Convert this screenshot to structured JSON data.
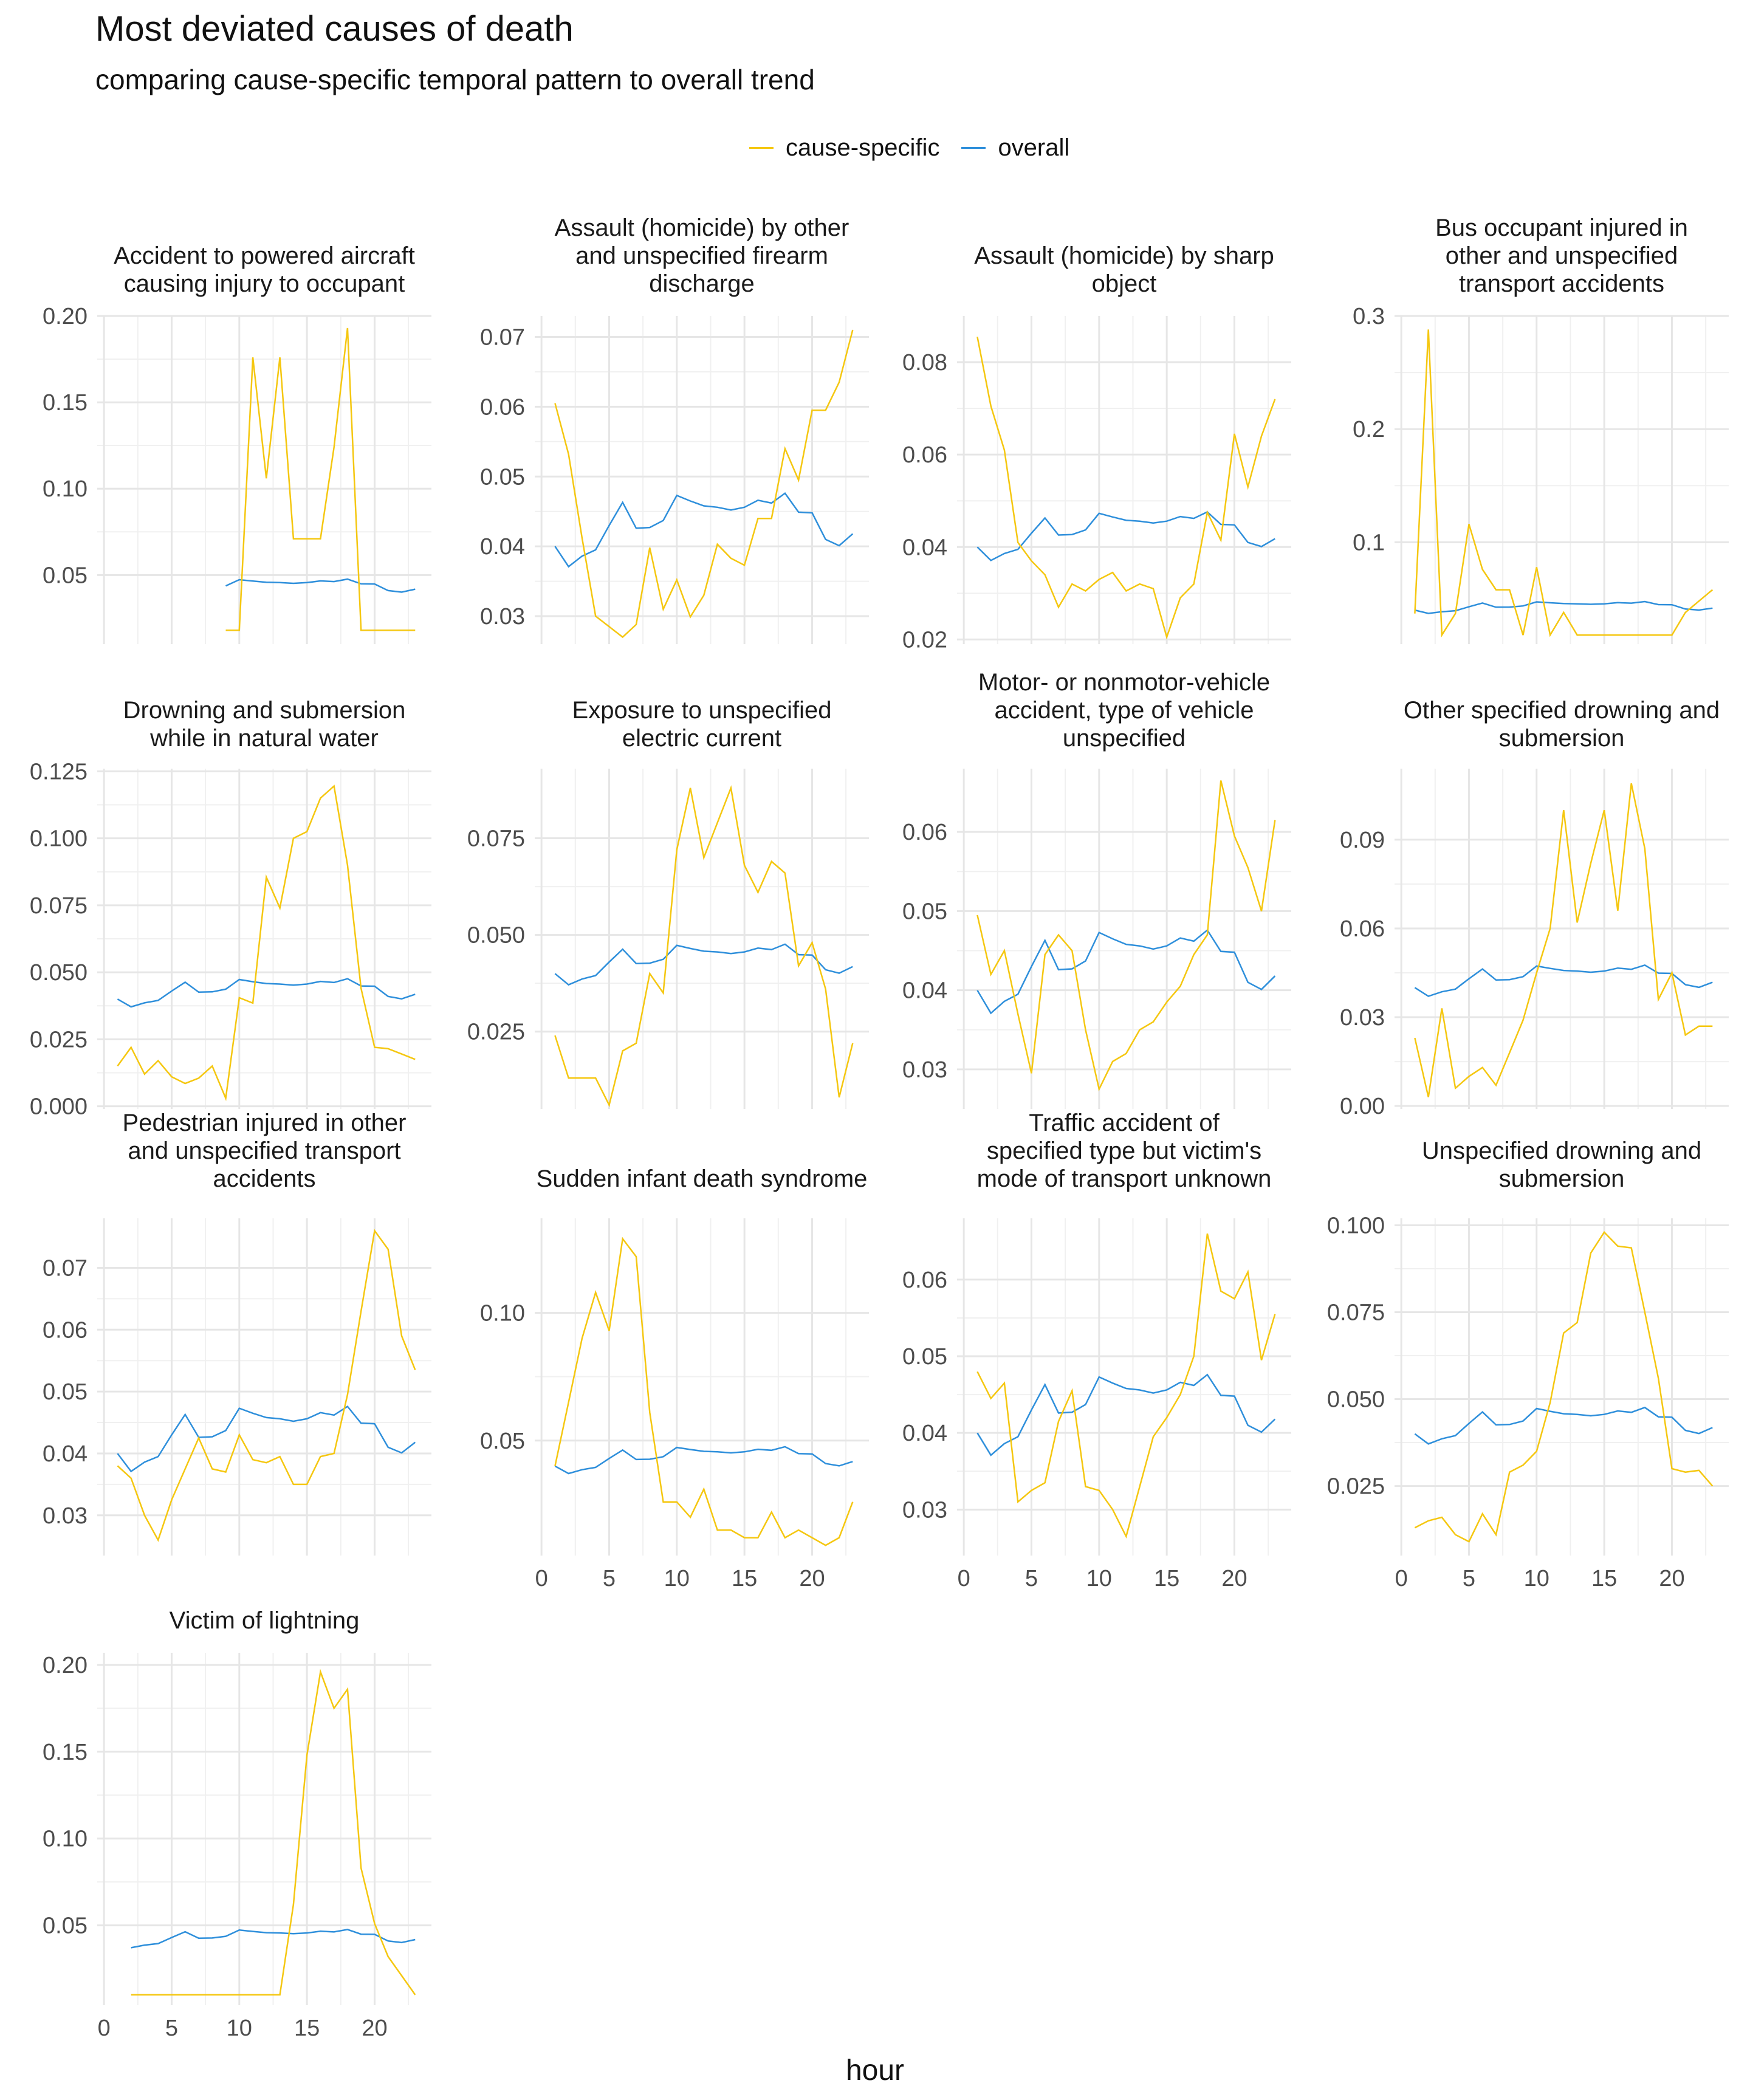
{
  "title": "Most deviated causes of death",
  "subtitle": "comparing cause-specific temporal pattern to overall trend",
  "xlabel": "hour",
  "legend": [
    {
      "label": "cause-specific",
      "color": "#F5C710"
    },
    {
      "label": "overall",
      "color": "#2E8FDB"
    }
  ],
  "chart_data": {
    "type": "line",
    "xlabel": "hour",
    "ylabel": "",
    "facet_wrap": "4 columns, free y scales, shared x axis",
    "legend_position": "top",
    "grid": true,
    "x_ticks": [
      0,
      5,
      10,
      15,
      20
    ],
    "xlim": [
      -0.5,
      24.2
    ],
    "series_names": [
      "cause-specific",
      "overall"
    ],
    "colors": {
      "cause-specific": "#F5C710",
      "overall": "#2E8FDB"
    },
    "overall": {
      "x": [
        1,
        2,
        3,
        4,
        5,
        6,
        7,
        8,
        9,
        10,
        11,
        12,
        13,
        14,
        15,
        16,
        17,
        18,
        19,
        20,
        21,
        22,
        23
      ],
      "y": [
        0.04,
        0.0371,
        0.0386,
        0.0395,
        0.043,
        0.0463,
        0.0426,
        0.0427,
        0.0437,
        0.0473,
        0.0465,
        0.0458,
        0.0456,
        0.0452,
        0.0456,
        0.0466,
        0.0462,
        0.0476,
        0.0449,
        0.0448,
        0.041,
        0.0401,
        0.0418
      ]
    },
    "panels": [
      {
        "title": "Accident to powered aircraft causing injury to occupant",
        "yticks": [
          0.05,
          0.1,
          0.15,
          0.2
        ],
        "ytick_labels": [
          "0.05",
          "0.10",
          "0.15",
          "0.20"
        ],
        "ylim": [
          0.01,
          0.2
        ],
        "overall_from": 9,
        "x_axis_labels": false,
        "cause_x": [
          9,
          10,
          11,
          12,
          13,
          14,
          15,
          16,
          17,
          18,
          19,
          20,
          21,
          22,
          23
        ],
        "cause_y": [
          0.018,
          0.018,
          0.176,
          0.106,
          0.176,
          0.071,
          0.071,
          0.071,
          0.124,
          0.193,
          0.018,
          0.018,
          0.018,
          0.018,
          0.018
        ]
      },
      {
        "title": "Assault (homicide) by other and unspecified firearm discharge",
        "yticks": [
          0.03,
          0.04,
          0.05,
          0.06,
          0.07
        ],
        "ytick_labels": [
          "0.03",
          "0.04",
          "0.05",
          "0.06",
          "0.07"
        ],
        "ylim": [
          0.026,
          0.073
        ],
        "x_axis_labels": false,
        "cause_x": [
          1,
          2,
          3,
          4,
          5,
          6,
          7,
          8,
          9,
          10,
          11,
          12,
          13,
          14,
          15,
          16,
          17,
          18,
          19,
          20,
          21,
          22,
          23
        ],
        "cause_y": [
          0.0605,
          0.0532,
          0.0412,
          0.03,
          0.0285,
          0.027,
          0.0288,
          0.0398,
          0.031,
          0.0352,
          0.0299,
          0.033,
          0.0403,
          0.0383,
          0.0373,
          0.044,
          0.044,
          0.054,
          0.0495,
          0.0595,
          0.0595,
          0.0635,
          0.071
        ]
      },
      {
        "title": "Assault (homicide) by sharp object",
        "yticks": [
          0.02,
          0.04,
          0.06,
          0.08
        ],
        "ytick_labels": [
          "0.02",
          "0.04",
          "0.06",
          "0.08"
        ],
        "ylim": [
          0.019,
          0.09
        ],
        "x_axis_labels": false,
        "cause_x": [
          1,
          2,
          3,
          4,
          5,
          6,
          7,
          8,
          9,
          10,
          11,
          12,
          13,
          14,
          15,
          16,
          17,
          18,
          19,
          20,
          21,
          22,
          23
        ],
        "cause_y": [
          0.0855,
          0.0705,
          0.061,
          0.041,
          0.037,
          0.034,
          0.027,
          0.032,
          0.0305,
          0.033,
          0.0345,
          0.0305,
          0.032,
          0.031,
          0.0205,
          0.029,
          0.032,
          0.0475,
          0.0415,
          0.0645,
          0.053,
          0.064,
          0.072
        ]
      },
      {
        "title": "Bus occupant injured in other and unspecified transport accidents",
        "yticks": [
          0.1,
          0.2,
          0.3
        ],
        "ytick_labels": [
          "0.1",
          "0.2",
          "0.3"
        ],
        "ylim": [
          0.01,
          0.3
        ],
        "x_axis_labels": false,
        "cause_x": [
          1,
          2,
          3,
          4,
          5,
          6,
          7,
          8,
          9,
          10,
          11,
          12,
          13,
          14,
          15,
          16,
          17,
          18,
          19,
          20,
          21,
          22,
          23
        ],
        "cause_y": [
          0.037,
          0.288,
          0.018,
          0.037,
          0.116,
          0.076,
          0.058,
          0.058,
          0.018,
          0.078,
          0.018,
          0.038,
          0.018,
          0.018,
          0.018,
          0.018,
          0.018,
          0.018,
          0.018,
          0.018,
          0.038,
          0.048,
          0.058
        ]
      },
      {
        "title": "Drowning and submersion while in natural water",
        "yticks": [
          0.0,
          0.025,
          0.05,
          0.075,
          0.1,
          0.125
        ],
        "ytick_labels": [
          "0.000",
          "0.025",
          "0.050",
          "0.075",
          "0.100",
          "0.125"
        ],
        "ylim": [
          -0.001,
          0.126
        ],
        "x_axis_labels": false,
        "cause_x": [
          1,
          2,
          3,
          4,
          5,
          6,
          7,
          8,
          9,
          10,
          11,
          12,
          13,
          14,
          15,
          16,
          17,
          18,
          19,
          20,
          21,
          22,
          23
        ],
        "cause_y": [
          0.015,
          0.022,
          0.012,
          0.017,
          0.011,
          0.0085,
          0.0105,
          0.015,
          0.003,
          0.0405,
          0.0385,
          0.0855,
          0.074,
          0.1,
          0.1025,
          0.115,
          0.1195,
          0.09,
          0.044,
          0.022,
          0.0215,
          0.0195,
          0.0175
        ]
      },
      {
        "title": "Exposure to unspecified electric current",
        "yticks": [
          0.025,
          0.05,
          0.075
        ],
        "ytick_labels": [
          "0.025",
          "0.050",
          "0.075"
        ],
        "ylim": [
          0.005,
          0.093
        ],
        "x_axis_labels": false,
        "cause_x": [
          1,
          2,
          3,
          4,
          5,
          6,
          7,
          8,
          9,
          10,
          11,
          12,
          13,
          14,
          15,
          16,
          17,
          18,
          19,
          20,
          21,
          22,
          23
        ],
        "cause_y": [
          0.024,
          0.013,
          0.013,
          0.013,
          0.006,
          0.02,
          0.022,
          0.04,
          0.035,
          0.072,
          0.088,
          0.07,
          0.079,
          0.088,
          0.068,
          0.061,
          0.069,
          0.066,
          0.042,
          0.048,
          0.036,
          0.008,
          0.022
        ]
      },
      {
        "title": "Motor- or nonmotor-vehicle accident, type of vehicle unspecified",
        "yticks": [
          0.03,
          0.04,
          0.05,
          0.06
        ],
        "ytick_labels": [
          "0.03",
          "0.04",
          "0.05",
          "0.06"
        ],
        "ylim": [
          0.025,
          0.068
        ],
        "x_axis_labels": false,
        "cause_x": [
          1,
          2,
          3,
          4,
          5,
          6,
          7,
          8,
          9,
          10,
          11,
          12,
          13,
          14,
          15,
          16,
          17,
          18,
          19,
          20,
          21,
          22,
          23
        ],
        "cause_y": [
          0.0495,
          0.042,
          0.045,
          0.037,
          0.0295,
          0.0445,
          0.047,
          0.045,
          0.035,
          0.0275,
          0.031,
          0.032,
          0.035,
          0.036,
          0.0385,
          0.0405,
          0.0445,
          0.047,
          0.0665,
          0.0595,
          0.0555,
          0.05,
          0.0615
        ]
      },
      {
        "title": "Other specified drowning and submersion",
        "yticks": [
          0.0,
          0.03,
          0.06,
          0.09
        ],
        "ytick_labels": [
          "0.00",
          "0.03",
          "0.06",
          "0.09"
        ],
        "ylim": [
          -0.001,
          0.114
        ],
        "x_axis_labels": false,
        "cause_x": [
          1,
          2,
          3,
          4,
          5,
          6,
          7,
          8,
          9,
          10,
          11,
          12,
          13,
          14,
          15,
          16,
          17,
          18,
          19,
          20,
          21,
          22,
          23
        ],
        "cause_y": [
          0.023,
          0.003,
          0.033,
          0.006,
          0.01,
          0.013,
          0.007,
          0.018,
          0.029,
          0.045,
          0.06,
          0.1,
          0.062,
          0.082,
          0.1,
          0.066,
          0.109,
          0.087,
          0.036,
          0.045,
          0.024,
          0.027,
          0.027
        ]
      },
      {
        "title": "Pedestrian injured in other and unspecified transport accidents",
        "yticks": [
          0.03,
          0.04,
          0.05,
          0.06,
          0.07
        ],
        "ytick_labels": [
          "0.03",
          "0.04",
          "0.05",
          "0.06",
          "0.07"
        ],
        "ylim": [
          0.0235,
          0.078
        ],
        "x_axis_labels": false,
        "cause_x": [
          1,
          2,
          3,
          4,
          5,
          6,
          7,
          8,
          9,
          10,
          11,
          12,
          13,
          14,
          15,
          16,
          17,
          18,
          19,
          20,
          21,
          22,
          23
        ],
        "cause_y": [
          0.038,
          0.036,
          0.03,
          0.026,
          0.0325,
          0.0375,
          0.0425,
          0.0375,
          0.037,
          0.043,
          0.039,
          0.0385,
          0.0395,
          0.035,
          0.035,
          0.0395,
          0.04,
          0.0495,
          0.063,
          0.076,
          0.073,
          0.059,
          0.0535
        ]
      },
      {
        "title": "Sudden infant death syndrome",
        "yticks": [
          0.05,
          0.1
        ],
        "ytick_labels": [
          "0.05",
          "0.10"
        ],
        "ylim": [
          0.005,
          0.137
        ],
        "x_axis_labels": true,
        "cause_x": [
          1,
          2,
          3,
          4,
          5,
          6,
          7,
          8,
          9,
          10,
          11,
          12,
          13,
          14,
          15,
          16,
          17,
          18,
          19,
          20,
          21,
          22,
          23
        ],
        "cause_y": [
          0.04,
          0.065,
          0.09,
          0.108,
          0.093,
          0.129,
          0.122,
          0.061,
          0.026,
          0.026,
          0.02,
          0.031,
          0.015,
          0.015,
          0.012,
          0.012,
          0.022,
          0.012,
          0.015,
          0.012,
          0.009,
          0.012,
          0.026
        ]
      },
      {
        "title": "Traffic accident of specified type but victim's mode of transport unknown",
        "yticks": [
          0.03,
          0.04,
          0.05,
          0.06
        ],
        "ytick_labels": [
          "0.03",
          "0.04",
          "0.05",
          "0.06"
        ],
        "ylim": [
          0.024,
          0.068
        ],
        "x_axis_labels": true,
        "cause_x": [
          1,
          2,
          3,
          4,
          5,
          6,
          7,
          8,
          9,
          10,
          11,
          12,
          13,
          14,
          15,
          16,
          17,
          18,
          19,
          20,
          21,
          22,
          23
        ],
        "cause_y": [
          0.048,
          0.0445,
          0.0465,
          0.031,
          0.0325,
          0.0335,
          0.0415,
          0.0455,
          0.033,
          0.0325,
          0.03,
          0.0265,
          0.033,
          0.0395,
          0.042,
          0.045,
          0.05,
          0.066,
          0.0585,
          0.0575,
          0.061,
          0.0495,
          0.0555
        ]
      },
      {
        "title": "Unspecified drowning and submersion",
        "yticks": [
          0.025,
          0.05,
          0.075,
          0.1
        ],
        "ytick_labels": [
          "0.025",
          "0.050",
          "0.075",
          "0.100"
        ],
        "ylim": [
          0.005,
          0.102
        ],
        "x_axis_labels": true,
        "cause_x": [
          1,
          2,
          3,
          4,
          5,
          6,
          7,
          8,
          9,
          10,
          11,
          12,
          13,
          14,
          15,
          16,
          17,
          18,
          19,
          20,
          21,
          22,
          23
        ],
        "cause_y": [
          0.013,
          0.015,
          0.016,
          0.011,
          0.009,
          0.017,
          0.011,
          0.029,
          0.031,
          0.035,
          0.049,
          0.069,
          0.072,
          0.092,
          0.098,
          0.094,
          0.0935,
          0.075,
          0.056,
          0.03,
          0.029,
          0.0295,
          0.025
        ]
      },
      {
        "title": "Victim of lightning",
        "yticks": [
          0.05,
          0.1,
          0.15,
          0.2
        ],
        "ytick_labels": [
          "0.05",
          "0.10",
          "0.15",
          "0.20"
        ],
        "ylim": [
          0.004,
          0.207
        ],
        "overall_from": 2,
        "x_axis_labels": true,
        "cause_x": [
          2,
          3,
          4,
          5,
          6,
          7,
          8,
          9,
          10,
          11,
          12,
          13,
          14,
          15,
          16,
          17,
          18,
          19,
          20,
          21,
          22,
          23
        ],
        "cause_y": [
          0.01,
          0.01,
          0.01,
          0.01,
          0.01,
          0.01,
          0.01,
          0.01,
          0.01,
          0.01,
          0.01,
          0.01,
          0.062,
          0.148,
          0.196,
          0.175,
          0.186,
          0.083,
          0.051,
          0.032,
          0.021,
          0.01
        ]
      }
    ]
  }
}
